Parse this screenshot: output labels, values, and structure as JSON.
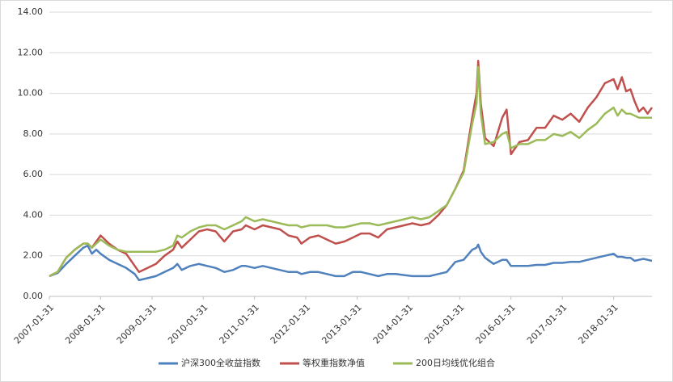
{
  "chart_data": {
    "type": "line",
    "x": [
      "2007-01-31",
      "2007-03-31",
      "2007-05-31",
      "2007-07-31",
      "2007-09-30",
      "2007-10-31",
      "2007-11-30",
      "2007-12-31",
      "2008-01-31",
      "2008-03-31",
      "2008-05-31",
      "2008-07-31",
      "2008-09-30",
      "2008-10-31",
      "2008-12-31",
      "2009-02-28",
      "2009-04-30",
      "2009-06-30",
      "2009-07-31",
      "2009-08-31",
      "2009-10-31",
      "2009-12-31",
      "2010-02-28",
      "2010-04-30",
      "2010-06-30",
      "2010-08-31",
      "2010-10-31",
      "2010-11-30",
      "2011-01-31",
      "2011-03-31",
      "2011-05-31",
      "2011-07-31",
      "2011-09-30",
      "2011-11-30",
      "2011-12-31",
      "2012-02-29",
      "2012-04-30",
      "2012-06-30",
      "2012-08-31",
      "2012-10-31",
      "2012-12-31",
      "2013-02-28",
      "2013-04-30",
      "2013-06-30",
      "2013-08-31",
      "2013-10-31",
      "2013-12-31",
      "2014-02-28",
      "2014-04-30",
      "2014-06-30",
      "2014-08-31",
      "2014-10-31",
      "2014-12-31",
      "2015-02-28",
      "2015-04-30",
      "2015-05-31",
      "2015-06-12",
      "2015-06-30",
      "2015-07-31",
      "2015-09-30",
      "2015-11-30",
      "2015-12-31",
      "2016-01-31",
      "2016-03-31",
      "2016-05-31",
      "2016-07-31",
      "2016-09-30",
      "2016-11-30",
      "2017-01-31",
      "2017-03-31",
      "2017-05-31",
      "2017-07-31",
      "2017-09-30",
      "2017-11-30",
      "2018-01-31",
      "2018-02-28",
      "2018-03-31",
      "2018-04-30",
      "2018-05-31",
      "2018-06-30",
      "2018-07-31",
      "2018-08-31",
      "2018-09-30",
      "2018-10-31"
    ],
    "series": [
      {
        "name": "沪深300全收益指数",
        "color": "#4f81bd",
        "values": [
          1.0,
          1.15,
          1.6,
          2.0,
          2.4,
          2.5,
          2.1,
          2.3,
          2.1,
          1.8,
          1.6,
          1.4,
          1.1,
          0.8,
          0.9,
          1.0,
          1.2,
          1.4,
          1.6,
          1.3,
          1.5,
          1.6,
          1.5,
          1.4,
          1.2,
          1.3,
          1.5,
          1.5,
          1.4,
          1.5,
          1.4,
          1.3,
          1.2,
          1.2,
          1.1,
          1.2,
          1.2,
          1.1,
          1.0,
          1.0,
          1.2,
          1.2,
          1.1,
          1.0,
          1.1,
          1.1,
          1.05,
          1.0,
          1.0,
          1.0,
          1.1,
          1.2,
          1.7,
          1.8,
          2.3,
          2.4,
          2.55,
          2.2,
          1.9,
          1.6,
          1.8,
          1.8,
          1.5,
          1.5,
          1.5,
          1.55,
          1.55,
          1.65,
          1.65,
          1.7,
          1.7,
          1.8,
          1.9,
          2.0,
          2.1,
          1.95,
          1.95,
          1.9,
          1.9,
          1.75,
          1.8,
          1.85,
          1.8,
          1.75
        ]
      },
      {
        "name": "等权重指数净值",
        "color": "#c0504d",
        "values": [
          1.0,
          1.2,
          1.9,
          2.3,
          2.6,
          2.6,
          2.4,
          2.7,
          3.0,
          2.6,
          2.3,
          2.1,
          1.5,
          1.2,
          1.4,
          1.6,
          2.0,
          2.3,
          2.7,
          2.4,
          2.8,
          3.2,
          3.3,
          3.2,
          2.7,
          3.2,
          3.3,
          3.5,
          3.3,
          3.5,
          3.4,
          3.3,
          3.0,
          2.9,
          2.6,
          2.9,
          3.0,
          2.8,
          2.6,
          2.7,
          2.9,
          3.1,
          3.1,
          2.9,
          3.3,
          3.4,
          3.5,
          3.6,
          3.5,
          3.6,
          4.0,
          4.5,
          5.3,
          6.2,
          8.8,
          10.0,
          11.6,
          9.5,
          7.8,
          7.4,
          8.8,
          9.2,
          7.0,
          7.6,
          7.7,
          8.3,
          8.3,
          8.9,
          8.7,
          9.0,
          8.6,
          9.3,
          9.8,
          10.5,
          10.7,
          10.2,
          10.8,
          10.1,
          10.2,
          9.6,
          9.1,
          9.3,
          9.0,
          9.3
        ]
      },
      {
        "name": "200日均线优化组合",
        "color": "#9bbb59",
        "values": [
          1.0,
          1.2,
          1.9,
          2.3,
          2.6,
          2.6,
          2.4,
          2.6,
          2.8,
          2.5,
          2.3,
          2.2,
          2.2,
          2.2,
          2.2,
          2.2,
          2.3,
          2.5,
          3.0,
          2.9,
          3.2,
          3.4,
          3.5,
          3.5,
          3.3,
          3.5,
          3.7,
          3.9,
          3.7,
          3.8,
          3.7,
          3.6,
          3.5,
          3.5,
          3.4,
          3.5,
          3.5,
          3.5,
          3.4,
          3.4,
          3.5,
          3.6,
          3.6,
          3.5,
          3.6,
          3.7,
          3.8,
          3.9,
          3.8,
          3.9,
          4.2,
          4.5,
          5.3,
          6.1,
          8.5,
          9.5,
          11.3,
          9.0,
          7.5,
          7.6,
          8.0,
          8.1,
          7.3,
          7.5,
          7.5,
          7.7,
          7.7,
          8.0,
          7.9,
          8.1,
          7.8,
          8.2,
          8.5,
          9.0,
          9.3,
          8.9,
          9.2,
          9.0,
          9.0,
          8.9,
          8.8,
          8.8,
          8.8,
          8.8
        ]
      }
    ],
    "xlim": [
      "2007-01-31",
      "2018-10-31"
    ],
    "xticks": [
      "2007-01-31",
      "2008-01-31",
      "2009-01-31",
      "2010-01-31",
      "2011-01-31",
      "2012-01-31",
      "2013-01-31",
      "2014-01-31",
      "2015-01-31",
      "2016-01-31",
      "2017-01-31",
      "2018-01-31"
    ],
    "ylim": [
      0,
      14
    ],
    "yticks": [
      {
        "value": 0,
        "label": "0.00"
      },
      {
        "value": 2,
        "label": "2.00"
      },
      {
        "value": 4,
        "label": "4.00"
      },
      {
        "value": 6,
        "label": "6.00"
      },
      {
        "value": 8,
        "label": "8.00"
      },
      {
        "value": 10,
        "label": "10.00"
      },
      {
        "value": 12,
        "label": "12.00"
      },
      {
        "value": 14,
        "label": "14.00"
      }
    ],
    "grid": true,
    "legend": "bottom"
  }
}
